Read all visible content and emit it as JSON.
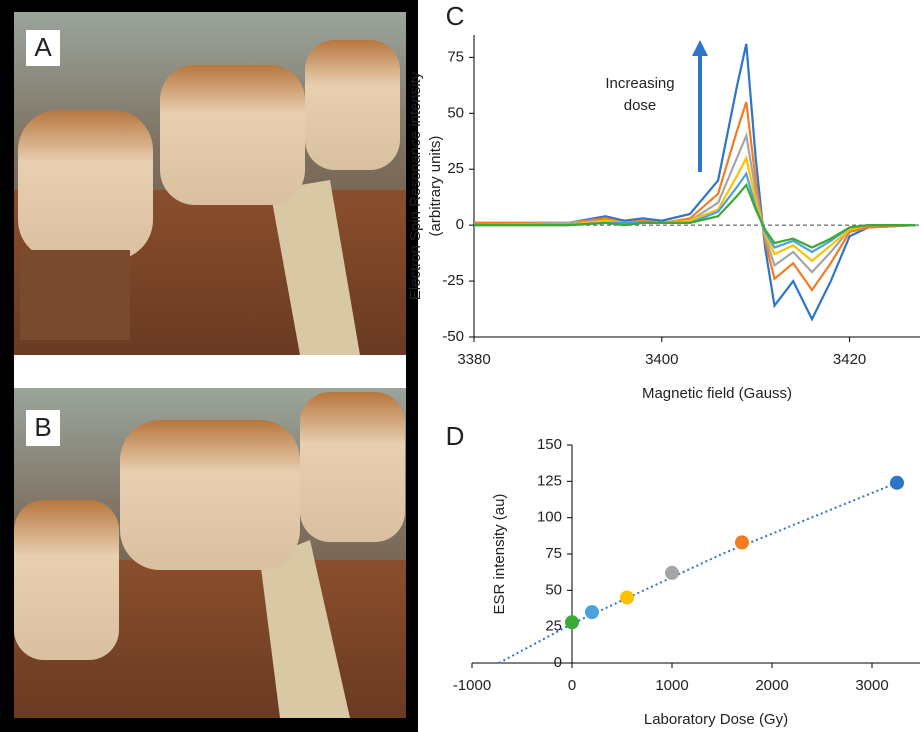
{
  "panel_labels": [
    "A",
    "B",
    "C",
    "D"
  ],
  "chart_data": [
    {
      "type": "line",
      "y_label": [
        "Electron Spin Resonance intensity",
        "(arbitrary units)"
      ],
      "x_label": "Magnetic field (Gauss)",
      "annotation": [
        "Increasing",
        "dose"
      ],
      "x": [
        3380,
        3390,
        3394,
        3396,
        3398,
        3400,
        3403,
        3406,
        3408,
        3409,
        3410,
        3411,
        3412,
        3414,
        3416,
        3418,
        3420,
        3422,
        3427
      ],
      "series": [
        {
          "color": "#2e75c9",
          "values": [
            1,
            1,
            4,
            2,
            3,
            2,
            5,
            20,
            62,
            81,
            30,
            -10,
            -36,
            -25,
            -42,
            -25,
            -5,
            -1,
            0
          ]
        },
        {
          "color": "#f47b20",
          "values": [
            1,
            1,
            3,
            1,
            2,
            1,
            3,
            14,
            42,
            55,
            20,
            -7,
            -24,
            -17,
            -29,
            -17,
            -3,
            -1,
            0
          ]
        },
        {
          "color": "#a5a5a5",
          "values": [
            0,
            1,
            2,
            1,
            1,
            1,
            2,
            10,
            30,
            40,
            15,
            -5,
            -18,
            -12,
            -21,
            -12,
            -2,
            0,
            0
          ]
        },
        {
          "color": "#ffc000",
          "values": [
            0,
            0,
            2,
            1,
            1,
            1,
            2,
            7,
            22,
            30,
            11,
            -4,
            -13,
            -9,
            -16,
            -9,
            -2,
            0,
            0
          ]
        },
        {
          "color": "#4aa3df",
          "values": [
            0,
            0,
            1,
            1,
            1,
            1,
            1,
            6,
            17,
            23,
            8,
            -3,
            -10,
            -7,
            -12,
            -7,
            -1,
            0,
            0
          ]
        },
        {
          "color": "#3aaa35",
          "values": [
            0,
            0,
            1,
            0,
            1,
            1,
            1,
            4,
            13,
            18,
            7,
            -2,
            -8,
            -6,
            -10,
            -6,
            -1,
            0,
            0
          ]
        }
      ],
      "hline": 0,
      "xlim": [
        3380,
        3427.5
      ],
      "xticks": [
        3380,
        3400,
        3420
      ],
      "ylim": [
        -50,
        85
      ],
      "yticks": [
        -50,
        -25,
        0,
        25,
        50,
        75
      ]
    },
    {
      "type": "scatter",
      "y_label": "ESR intensity (au)",
      "x_label": "Laboratory Dose (Gy)",
      "x": [
        0,
        200,
        550,
        1000,
        1700,
        3250
      ],
      "values": [
        28,
        35,
        45,
        62,
        83,
        124
      ],
      "colors": [
        "#3aaa35",
        "#4aa3df",
        "#ffc000",
        "#a5a5a5",
        "#f47b20",
        "#2e75c9"
      ],
      "trend": {
        "color": "#2e75c9",
        "x": [
          -730,
          0,
          500,
          1000,
          1500,
          2000,
          2500,
          3250
        ],
        "values": [
          0,
          27,
          43,
          59,
          75,
          89,
          103,
          124
        ]
      },
      "xlim": [
        -1000,
        3480
      ],
      "xticks": [
        -1000,
        0,
        1000,
        2000,
        3000
      ],
      "ylim": [
        0,
        150
      ],
      "yticks": [
        0,
        25,
        50,
        75,
        100,
        125,
        150
      ]
    }
  ]
}
